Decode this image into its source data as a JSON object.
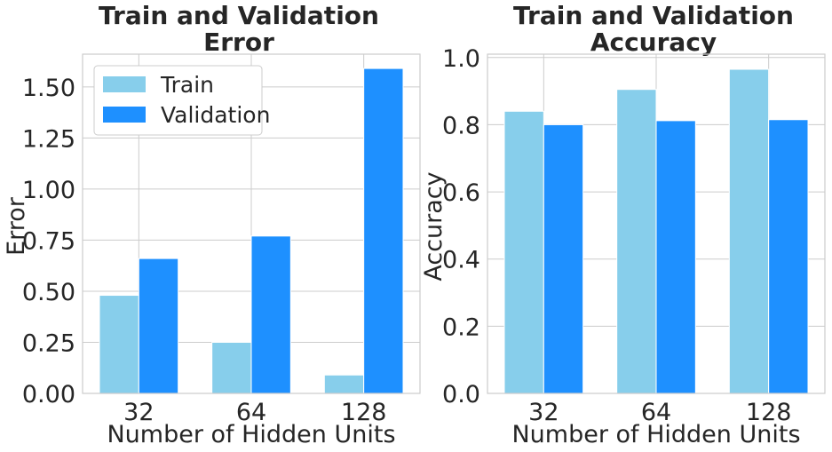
{
  "chart_data": [
    {
      "type": "bar",
      "title": [
        "Train and Validation",
        "Error"
      ],
      "xlabel": "Number of Hidden Units",
      "ylabel": "Error",
      "categories": [
        "32",
        "64",
        "128"
      ],
      "ylim": [
        0,
        1.66
      ],
      "yticks": [
        0.0,
        0.25,
        0.5,
        0.75,
        1.0,
        1.25,
        1.5
      ],
      "ytick_labels": [
        "0.00",
        "0.25",
        "0.50",
        "0.75",
        "1.00",
        "1.25",
        "1.50"
      ],
      "series": [
        {
          "name": "Train",
          "color": "#87ceeb",
          "values": [
            0.48,
            0.25,
            0.09
          ]
        },
        {
          "name": "Validation",
          "color": "#1e90ff",
          "values": [
            0.66,
            0.77,
            1.59
          ]
        }
      ],
      "grid": true,
      "legend": "top-left"
    },
    {
      "type": "bar",
      "title": [
        "Train and Validation",
        "Accuracy"
      ],
      "xlabel": "Number of Hidden Units",
      "ylabel": "Accuracy",
      "categories": [
        "32",
        "64",
        "128"
      ],
      "ylim": [
        0,
        1.01
      ],
      "yticks": [
        0.0,
        0.2,
        0.4,
        0.6,
        0.8,
        1.0
      ],
      "ytick_labels": [
        "0.0",
        "0.2",
        "0.4",
        "0.6",
        "0.8",
        "1.0"
      ],
      "series": [
        {
          "name": "Train",
          "color": "#87ceeb",
          "values": [
            0.84,
            0.905,
            0.965
          ]
        },
        {
          "name": "Validation",
          "color": "#1e90ff",
          "values": [
            0.8,
            0.812,
            0.815
          ]
        }
      ],
      "grid": true
    }
  ]
}
